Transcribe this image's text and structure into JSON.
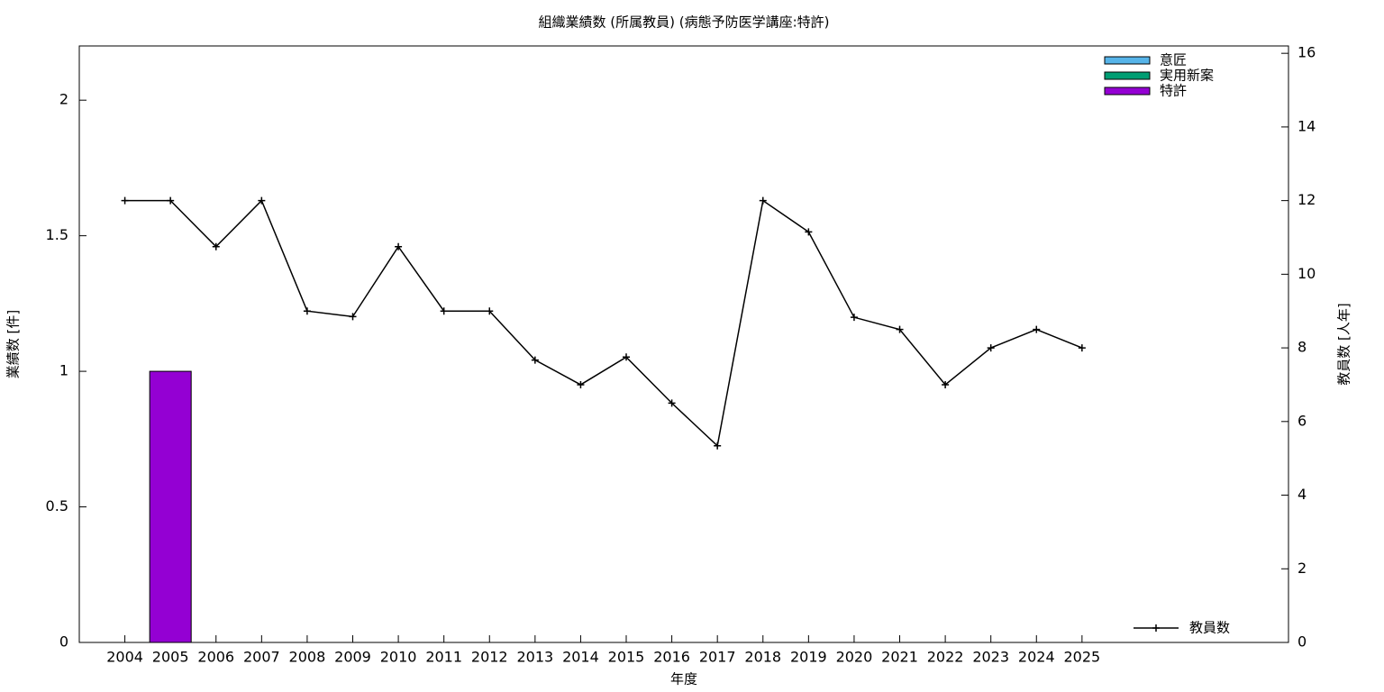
{
  "chart_data": {
    "type": "bar",
    "title": "組織業績数 (所属教員) (病態予防医学講座:特許)",
    "x_label": "年度",
    "y_label": "業績数 [件]",
    "y2_label": "教員数 [人年]",
    "categories": [
      "2004",
      "2005",
      "2006",
      "2007",
      "2008",
      "2009",
      "2010",
      "2011",
      "2012",
      "2013",
      "2014",
      "2015",
      "2016",
      "2017",
      "2018",
      "2019",
      "2020",
      "2021",
      "2022",
      "2023",
      "2024",
      "2025"
    ],
    "series": [
      {
        "name": "意匠",
        "color": "#56b4e9",
        "values": [
          0,
          0,
          0,
          0,
          0,
          0,
          0,
          0,
          0,
          0,
          0,
          0,
          0,
          0,
          0,
          0,
          0,
          0,
          0,
          0,
          0,
          0
        ]
      },
      {
        "name": "実用新案",
        "color": "#009e73",
        "values": [
          0,
          0,
          0,
          0,
          0,
          0,
          0,
          0,
          0,
          0,
          0,
          0,
          0,
          0,
          0,
          0,
          0,
          0,
          0,
          0,
          0,
          0
        ]
      },
      {
        "name": "特許",
        "color": "#9400d3",
        "values": [
          0,
          1,
          0,
          0,
          0,
          0,
          0,
          0,
          0,
          0,
          0,
          0,
          0,
          0,
          0,
          0,
          0,
          0,
          0,
          0,
          0,
          0
        ]
      },
      {
        "name": "教員数",
        "color": "#000000",
        "type": "line",
        "axis": "y2",
        "values": [
          12,
          12,
          10.75,
          12,
          9,
          8.85,
          10.75,
          9,
          9,
          7.67,
          7,
          7.75,
          6.5,
          5.34,
          12,
          11.15,
          8.83,
          8.5,
          7,
          8,
          8.5,
          8
        ]
      }
    ],
    "stacked": true,
    "ylim": [
      0,
      2.2
    ],
    "yticks": [
      0,
      0.5,
      1,
      1.5,
      2
    ],
    "y2lim": [
      0,
      16.2
    ],
    "y2ticks": [
      0,
      2,
      4,
      6,
      8,
      10,
      12,
      14,
      16
    ],
    "legend": "top-right"
  }
}
